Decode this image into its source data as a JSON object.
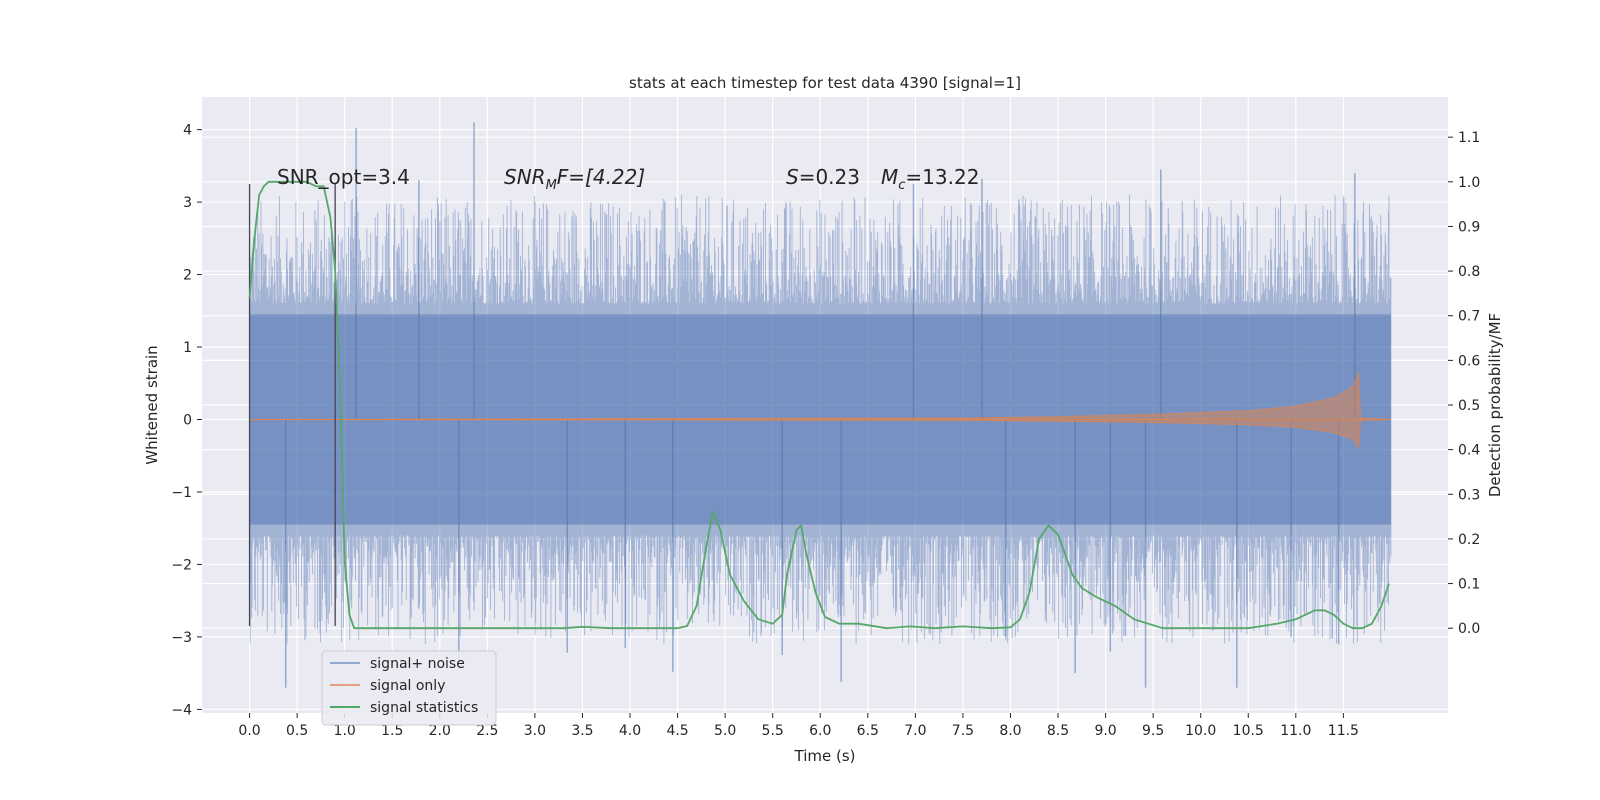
{
  "chart_data": {
    "type": "line",
    "title": "stats at each timestep for test data 4390 [signal=1]",
    "xlabel": "Time (s)",
    "ylabel_left": "Whitened strain",
    "ylabel_right": "Detection probability/MF",
    "xlim": [
      -0.5,
      12.6
    ],
    "ylim_left": [
      -4.05,
      4.45
    ],
    "ylim_right": [
      -0.19,
      1.19
    ],
    "x_ticks": [
      0.0,
      0.5,
      1.0,
      1.5,
      2.0,
      2.5,
      3.0,
      3.5,
      4.0,
      4.5,
      5.0,
      5.5,
      6.0,
      6.5,
      7.0,
      7.5,
      8.0,
      8.5,
      9.0,
      9.5,
      10.0,
      10.5,
      11.0,
      11.5
    ],
    "x_tick_labels": [
      "0.0",
      "0.5",
      "1.0",
      "1.5",
      "2.0",
      "2.5",
      "3.0",
      "3.5",
      "4.0",
      "4.5",
      "5.0",
      "5.5",
      "6.0",
      "6.5",
      "7.0",
      "7.5",
      "8.0",
      "8.5",
      "9.0",
      "9.5",
      "10.0",
      "10.5",
      "11.0",
      "11.5"
    ],
    "y_left_ticks": [
      4,
      3,
      2,
      1,
      0,
      -1,
      -2,
      -3,
      -4
    ],
    "y_left_tick_labels": [
      "4",
      "3",
      "2",
      "1",
      "0",
      "−1",
      "−2",
      "−3",
      "−4"
    ],
    "y_right_ticks": [
      1.1,
      1.0,
      0.9,
      0.8,
      0.7,
      0.6,
      0.5,
      0.4,
      0.3,
      0.2,
      0.1,
      0.0
    ],
    "y_right_tick_labels": [
      "1.1",
      "1.0",
      "0.9",
      "0.8",
      "0.7",
      "0.6",
      "0.5",
      "0.4",
      "0.3",
      "0.2",
      "0.1",
      "0.0"
    ],
    "grid": true,
    "legend_placement": "lower-left",
    "annotations": {
      "snr_opt": "SNR_opt=3.4",
      "snr_mf_main": "SNR",
      "snr_mf_sub": "M",
      "snr_mf_rest": "F=[4.22]",
      "s_main": "S",
      "s_rest": "=0.23",
      "mc_main": "M",
      "mc_sub": "c",
      "mc_rest": "=13.22"
    },
    "vertical_lines": [
      {
        "x": 0.0,
        "y_range": [
          -2.85,
          3.25
        ]
      },
      {
        "x": 0.9,
        "y_range": [
          -2.85,
          3.25
        ]
      }
    ],
    "series": [
      {
        "name": "signal+ noise",
        "color": "#4c72b0",
        "axis": "left",
        "x_range": [
          0.0,
          12.0
        ],
        "dense_band": [
          -1.45,
          1.45
        ],
        "extreme_values": [
          {
            "x": 0.38,
            "y": -3.7
          },
          {
            "x": 1.12,
            "y": 4.02
          },
          {
            "x": 2.36,
            "y": 4.1
          },
          {
            "x": 1.78,
            "y": 3.3
          },
          {
            "x": 3.34,
            "y": -3.22
          },
          {
            "x": 4.45,
            "y": -3.48
          },
          {
            "x": 6.22,
            "y": -3.62
          },
          {
            "x": 6.98,
            "y": 3.25
          },
          {
            "x": 7.7,
            "y": 3.32
          },
          {
            "x": 8.68,
            "y": -3.5
          },
          {
            "x": 9.42,
            "y": -3.7
          },
          {
            "x": 9.58,
            "y": 3.45
          },
          {
            "x": 10.38,
            "y": -3.7
          },
          {
            "x": 11.62,
            "y": 3.4
          },
          {
            "x": 2.2,
            "y": -3.4
          },
          {
            "x": 3.95,
            "y": -3.15
          },
          {
            "x": 5.6,
            "y": -3.25
          },
          {
            "x": 7.95,
            "y": -3.0
          },
          {
            "x": 9.05,
            "y": -3.2
          },
          {
            "x": 10.95,
            "y": -3.0
          },
          {
            "x": 11.45,
            "y": -3.1
          }
        ]
      },
      {
        "name": "signal only",
        "color": "#dd8452",
        "axis": "left",
        "description_values": {
          "x": [
            0.0,
            7.5,
            8.5,
            9.5,
            10.5,
            11.0,
            11.4,
            11.6,
            11.66,
            11.68,
            12.0
          ],
          "amplitude": [
            0.0,
            0.02,
            0.04,
            0.07,
            0.12,
            0.18,
            0.3,
            0.45,
            0.65,
            0.02,
            0.0
          ]
        }
      },
      {
        "name": "signal statistics",
        "color": "#55a868",
        "axis": "right",
        "x": [
          0.0,
          0.05,
          0.1,
          0.15,
          0.2,
          0.3,
          0.4,
          0.5,
          0.6,
          0.7,
          0.78,
          0.85,
          0.9,
          0.95,
          1.0,
          1.05,
          1.1,
          1.2,
          1.5,
          2.0,
          2.5,
          3.0,
          3.3,
          3.5,
          3.8,
          4.0,
          4.5,
          4.6,
          4.7,
          4.8,
          4.87,
          4.95,
          5.05,
          5.2,
          5.35,
          5.5,
          5.6,
          5.65,
          5.75,
          5.8,
          5.85,
          5.95,
          6.05,
          6.2,
          6.4,
          6.7,
          6.95,
          7.2,
          7.5,
          7.8,
          8.0,
          8.1,
          8.2,
          8.3,
          8.4,
          8.5,
          8.55,
          8.65,
          8.75,
          8.9,
          9.1,
          9.3,
          9.6,
          10.0,
          10.5,
          10.8,
          11.0,
          11.1,
          11.2,
          11.3,
          11.4,
          11.5,
          11.6,
          11.7,
          11.8,
          11.9,
          11.98
        ],
        "y": [
          0.74,
          0.87,
          0.97,
          0.99,
          1.0,
          1.0,
          1.0,
          1.0,
          1.0,
          0.99,
          0.99,
          0.92,
          0.8,
          0.55,
          0.15,
          0.03,
          0.0,
          0.0,
          0.0,
          0.0,
          0.0,
          0.0,
          0.0,
          0.003,
          0.0,
          0.0,
          0.0,
          0.005,
          0.05,
          0.18,
          0.26,
          0.22,
          0.12,
          0.06,
          0.02,
          0.01,
          0.03,
          0.12,
          0.22,
          0.23,
          0.17,
          0.08,
          0.025,
          0.01,
          0.01,
          0.0,
          0.004,
          0.0,
          0.004,
          0.0,
          0.002,
          0.02,
          0.08,
          0.2,
          0.23,
          0.21,
          0.18,
          0.12,
          0.09,
          0.07,
          0.05,
          0.02,
          0.0,
          0.0,
          0.0,
          0.01,
          0.02,
          0.03,
          0.04,
          0.04,
          0.03,
          0.01,
          0.0,
          0.0,
          0.01,
          0.05,
          0.1
        ]
      }
    ]
  }
}
